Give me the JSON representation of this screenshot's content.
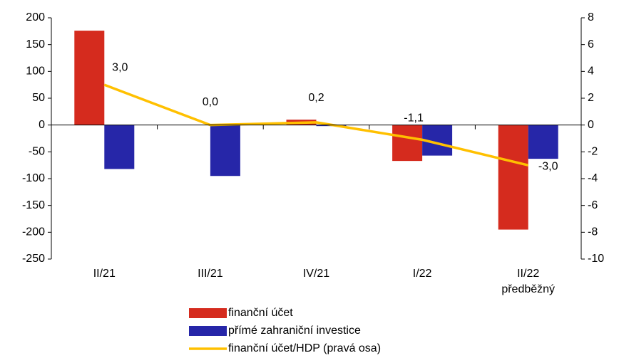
{
  "chart_data": {
    "type": "bar",
    "categories": [
      "II/21",
      "III/21",
      "IV/21",
      "I/22",
      "II/22\npředběžný"
    ],
    "series": [
      {
        "name": "finanční účet",
        "color": "#d52b1e",
        "values": [
          176,
          0,
          10,
          -67,
          -195
        ]
      },
      {
        "name": "přímé zahraniční investice",
        "color": "#2626a8",
        "values": [
          -82,
          -95,
          -2,
          -57,
          -63
        ]
      },
      {
        "name": "finanční účet/HDP (pravá osa)",
        "color": "#ffc000",
        "type": "line",
        "axis": "y2",
        "values": [
          3.0,
          0.0,
          0.2,
          -1.1,
          -3.0
        ],
        "value_labels": [
          "3,0",
          "0,0",
          "0,2",
          "-1,1",
          "-3,0"
        ]
      }
    ],
    "ylim": [
      -250,
      200
    ],
    "yticks": [
      -250,
      -200,
      -150,
      -100,
      -50,
      0,
      50,
      100,
      150,
      200
    ],
    "y2lim": [
      -10,
      8
    ],
    "y2ticks": [
      -10,
      -8,
      -6,
      -4,
      -2,
      0,
      2,
      4,
      6,
      8
    ]
  }
}
